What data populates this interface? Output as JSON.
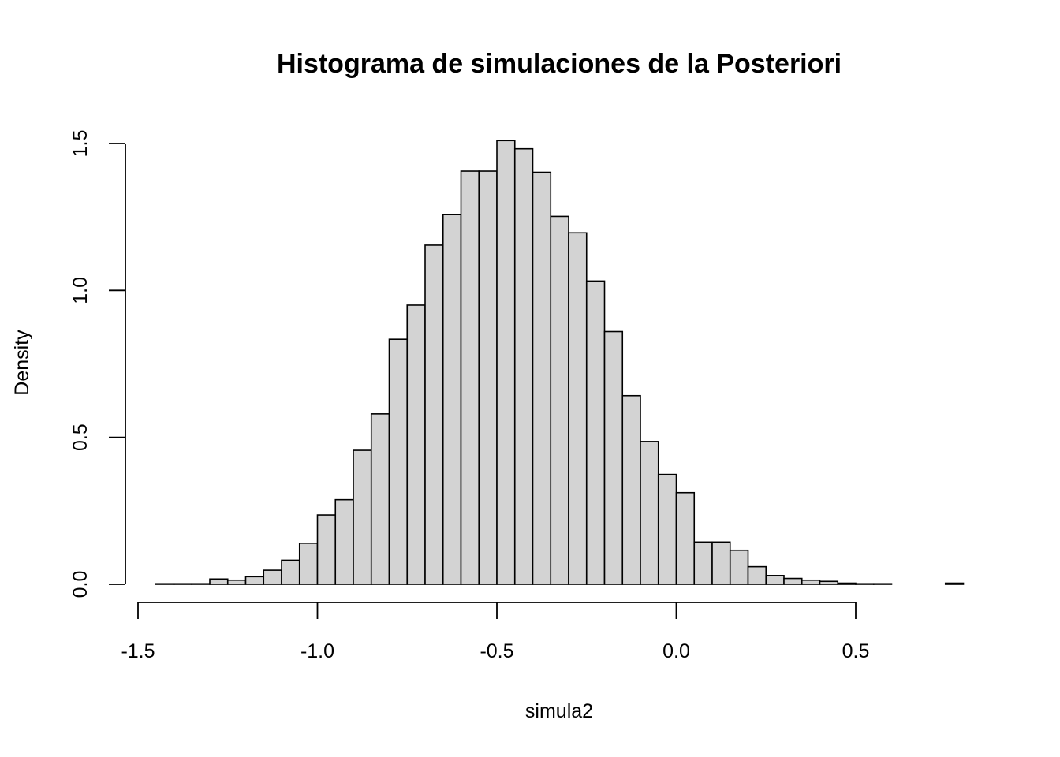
{
  "chart_data": {
    "type": "bar",
    "title": "Histograma de simulaciones de la Posteriori",
    "xlabel": "simula2",
    "ylabel": "Density",
    "xlim": [
      -1.5,
      0.8
    ],
    "ylim": [
      0,
      1.5
    ],
    "x_ticks": [
      {
        "value": -1.5,
        "label": "-1.5"
      },
      {
        "value": -1.0,
        "label": "-1.0"
      },
      {
        "value": -0.5,
        "label": "-0.5"
      },
      {
        "value": 0.0,
        "label": "0.0"
      },
      {
        "value": 0.5,
        "label": "0.5"
      }
    ],
    "y_ticks": [
      {
        "value": 0.0,
        "label": "0.0"
      },
      {
        "value": 0.5,
        "label": "0.5"
      },
      {
        "value": 1.0,
        "label": "1.0"
      },
      {
        "value": 1.5,
        "label": "1.5"
      }
    ],
    "bin_width": 0.05,
    "bin_start": -1.45,
    "bins": [
      {
        "start": -1.45,
        "end": -1.4,
        "density": 0.002
      },
      {
        "start": -1.4,
        "end": -1.35,
        "density": 0.002
      },
      {
        "start": -1.35,
        "end": -1.3,
        "density": 0.002
      },
      {
        "start": -1.3,
        "end": -1.25,
        "density": 0.018
      },
      {
        "start": -1.25,
        "end": -1.2,
        "density": 0.014
      },
      {
        "start": -1.2,
        "end": -1.15,
        "density": 0.026
      },
      {
        "start": -1.15,
        "end": -1.1,
        "density": 0.048
      },
      {
        "start": -1.1,
        "end": -1.05,
        "density": 0.082
      },
      {
        "start": -1.05,
        "end": -1.0,
        "density": 0.14
      },
      {
        "start": -1.0,
        "end": -0.95,
        "density": 0.236
      },
      {
        "start": -0.95,
        "end": -0.9,
        "density": 0.288
      },
      {
        "start": -0.9,
        "end": -0.85,
        "density": 0.456
      },
      {
        "start": -0.85,
        "end": -0.8,
        "density": 0.58
      },
      {
        "start": -0.8,
        "end": -0.75,
        "density": 0.834
      },
      {
        "start": -0.75,
        "end": -0.7,
        "density": 0.95
      },
      {
        "start": -0.7,
        "end": -0.65,
        "density": 1.154
      },
      {
        "start": -0.65,
        "end": -0.6,
        "density": 1.258
      },
      {
        "start": -0.6,
        "end": -0.55,
        "density": 1.406
      },
      {
        "start": -0.55,
        "end": -0.5,
        "density": 1.406
      },
      {
        "start": -0.5,
        "end": -0.45,
        "density": 1.51
      },
      {
        "start": -0.45,
        "end": -0.4,
        "density": 1.482
      },
      {
        "start": -0.4,
        "end": -0.35,
        "density": 1.402
      },
      {
        "start": -0.35,
        "end": -0.3,
        "density": 1.252
      },
      {
        "start": -0.3,
        "end": -0.25,
        "density": 1.196
      },
      {
        "start": -0.25,
        "end": -0.2,
        "density": 1.032
      },
      {
        "start": -0.2,
        "end": -0.15,
        "density": 0.86
      },
      {
        "start": -0.15,
        "end": -0.1,
        "density": 0.642
      },
      {
        "start": -0.1,
        "end": -0.05,
        "density": 0.486
      },
      {
        "start": -0.05,
        "end": 0.0,
        "density": 0.374
      },
      {
        "start": 0.0,
        "end": 0.05,
        "density": 0.312
      },
      {
        "start": 0.05,
        "end": 0.1,
        "density": 0.144
      },
      {
        "start": 0.1,
        "end": 0.15,
        "density": 0.144
      },
      {
        "start": 0.15,
        "end": 0.2,
        "density": 0.116
      },
      {
        "start": 0.2,
        "end": 0.25,
        "density": 0.06
      },
      {
        "start": 0.25,
        "end": 0.3,
        "density": 0.03
      },
      {
        "start": 0.3,
        "end": 0.35,
        "density": 0.02
      },
      {
        "start": 0.35,
        "end": 0.4,
        "density": 0.014
      },
      {
        "start": 0.4,
        "end": 0.45,
        "density": 0.01
      },
      {
        "start": 0.45,
        "end": 0.5,
        "density": 0.004
      },
      {
        "start": 0.5,
        "end": 0.55,
        "density": 0.002
      },
      {
        "start": 0.55,
        "end": 0.6,
        "density": 0.002
      },
      {
        "start": 0.6,
        "end": 0.65,
        "density": 0.0
      },
      {
        "start": 0.65,
        "end": 0.7,
        "density": 0.0
      },
      {
        "start": 0.7,
        "end": 0.75,
        "density": 0.0
      },
      {
        "start": 0.75,
        "end": 0.8,
        "density": 0.004
      }
    ],
    "bar_fill": "#d3d3d3",
    "bar_stroke": "#000000",
    "grid": false,
    "legend": "none"
  }
}
